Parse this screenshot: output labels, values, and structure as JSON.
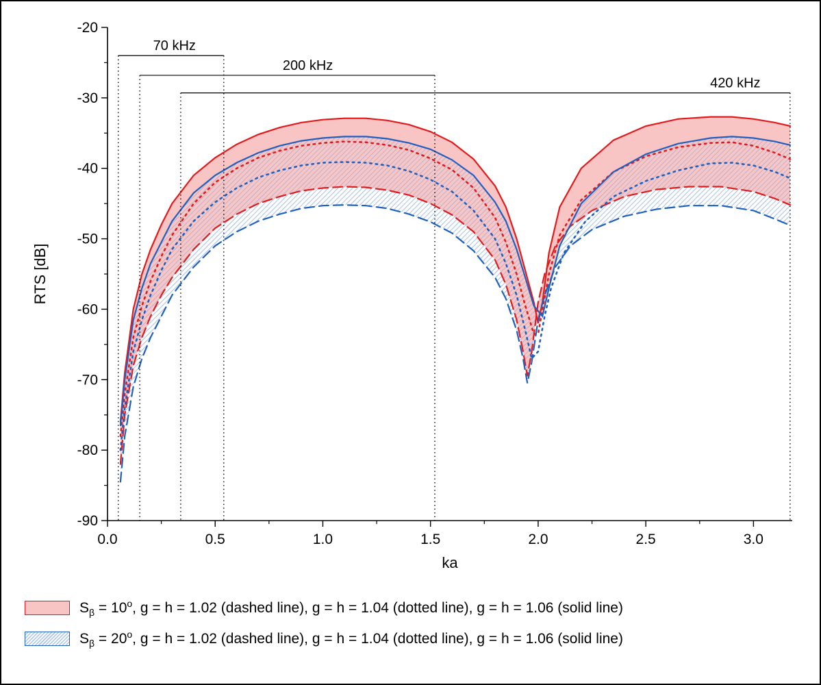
{
  "chart_data": {
    "type": "area",
    "xlabel": "ka",
    "ylabel": "RTS [dB]",
    "xlim": [
      0.0,
      3.18
    ],
    "ylim": [
      -90,
      -20
    ],
    "xticks": [
      "0.0",
      "0.5",
      "1.0",
      "1.5",
      "2.0",
      "2.5",
      "3.0"
    ],
    "yticks": [
      "-20",
      "-30",
      "-40",
      "-50",
      "-60",
      "-70",
      "-80",
      "-90"
    ],
    "grid": false,
    "legend_position": "bottom",
    "frequency_ranges": [
      {
        "label": "70 kHz",
        "ka_min": 0.05,
        "ka_max": 0.54,
        "rts_level": -24
      },
      {
        "label": "200 kHz",
        "ka_min": 0.15,
        "ka_max": 1.52,
        "rts_level": -26.8
      },
      {
        "label": "420 kHz",
        "ka_min": 0.34,
        "ka_max": 3.17,
        "rts_level": -29.3
      }
    ],
    "series": [
      {
        "group": "S10",
        "style": "dashed",
        "color": "#e31a1c",
        "points": [
          [
            0.06,
            -82
          ],
          [
            0.08,
            -75
          ],
          [
            0.12,
            -68
          ],
          [
            0.16,
            -64
          ],
          [
            0.2,
            -61
          ],
          [
            0.25,
            -58
          ],
          [
            0.3,
            -55.5
          ],
          [
            0.4,
            -51.5
          ],
          [
            0.5,
            -48.5
          ],
          [
            0.6,
            -46.5
          ],
          [
            0.7,
            -45
          ],
          [
            0.8,
            -44
          ],
          [
            0.9,
            -43.2
          ],
          [
            1.0,
            -42.8
          ],
          [
            1.1,
            -42.6
          ],
          [
            1.2,
            -42.7
          ],
          [
            1.3,
            -43.1
          ],
          [
            1.4,
            -43.8
          ],
          [
            1.5,
            -45
          ],
          [
            1.6,
            -46.6
          ],
          [
            1.7,
            -49
          ],
          [
            1.8,
            -53
          ],
          [
            1.85,
            -56.5
          ],
          [
            1.9,
            -61.5
          ],
          [
            1.93,
            -66
          ],
          [
            1.95,
            -69.5
          ],
          [
            1.97,
            -66
          ],
          [
            2.0,
            -59
          ],
          [
            2.03,
            -55
          ],
          [
            2.08,
            -51
          ],
          [
            2.15,
            -48.2
          ],
          [
            2.25,
            -46
          ],
          [
            2.4,
            -44
          ],
          [
            2.55,
            -43
          ],
          [
            2.7,
            -42.6
          ],
          [
            2.85,
            -42.6
          ],
          [
            3.0,
            -43.3
          ],
          [
            3.1,
            -44.3
          ],
          [
            3.17,
            -45.2
          ]
        ]
      },
      {
        "group": "S10",
        "style": "dotted",
        "color": "#e31a1c",
        "points": [
          [
            0.06,
            -78
          ],
          [
            0.08,
            -72
          ],
          [
            0.12,
            -64
          ],
          [
            0.16,
            -59.5
          ],
          [
            0.2,
            -56
          ],
          [
            0.25,
            -52.5
          ],
          [
            0.3,
            -49.5
          ],
          [
            0.4,
            -45
          ],
          [
            0.5,
            -42
          ],
          [
            0.6,
            -40
          ],
          [
            0.7,
            -38.5
          ],
          [
            0.8,
            -37.5
          ],
          [
            0.9,
            -36.8
          ],
          [
            1.0,
            -36.4
          ],
          [
            1.1,
            -36.2
          ],
          [
            1.2,
            -36.3
          ],
          [
            1.3,
            -36.7
          ],
          [
            1.4,
            -37.4
          ],
          [
            1.5,
            -38.6
          ],
          [
            1.6,
            -40.2
          ],
          [
            1.7,
            -42.8
          ],
          [
            1.8,
            -47
          ],
          [
            1.85,
            -50.5
          ],
          [
            1.9,
            -55
          ],
          [
            1.94,
            -59.5
          ],
          [
            1.98,
            -63.5
          ],
          [
            2.0,
            -63.5
          ],
          [
            2.02,
            -60
          ],
          [
            2.05,
            -55
          ],
          [
            2.1,
            -49.5
          ],
          [
            2.2,
            -44.5
          ],
          [
            2.35,
            -40.5
          ],
          [
            2.5,
            -38.3
          ],
          [
            2.65,
            -37
          ],
          [
            2.8,
            -36.4
          ],
          [
            2.9,
            -36.3
          ],
          [
            3.0,
            -36.8
          ],
          [
            3.1,
            -37.8
          ],
          [
            3.17,
            -38.7
          ]
        ]
      },
      {
        "group": "S10",
        "style": "solid",
        "color": "#e31a1c",
        "points": [
          [
            0.06,
            -76
          ],
          [
            0.08,
            -69
          ],
          [
            0.12,
            -60
          ],
          [
            0.16,
            -55
          ],
          [
            0.2,
            -51.5
          ],
          [
            0.25,
            -48
          ],
          [
            0.3,
            -45
          ],
          [
            0.4,
            -41
          ],
          [
            0.5,
            -38.5
          ],
          [
            0.6,
            -36.6
          ],
          [
            0.7,
            -35.2
          ],
          [
            0.8,
            -34.2
          ],
          [
            0.9,
            -33.5
          ],
          [
            1.0,
            -33.1
          ],
          [
            1.1,
            -32.9
          ],
          [
            1.2,
            -32.9
          ],
          [
            1.3,
            -33.2
          ],
          [
            1.4,
            -33.8
          ],
          [
            1.5,
            -34.8
          ],
          [
            1.6,
            -36.3
          ],
          [
            1.7,
            -38.7
          ],
          [
            1.8,
            -42.5
          ],
          [
            1.85,
            -45.5
          ],
          [
            1.9,
            -50
          ],
          [
            1.94,
            -54.5
          ],
          [
            1.98,
            -59
          ],
          [
            2.0,
            -62
          ],
          [
            2.02,
            -59
          ],
          [
            2.05,
            -52
          ],
          [
            2.1,
            -45.5
          ],
          [
            2.2,
            -40
          ],
          [
            2.35,
            -36
          ],
          [
            2.5,
            -34
          ],
          [
            2.65,
            -33
          ],
          [
            2.8,
            -32.7
          ],
          [
            2.9,
            -32.7
          ],
          [
            3.0,
            -33
          ],
          [
            3.1,
            -33.5
          ],
          [
            3.17,
            -34
          ]
        ]
      },
      {
        "group": "S20",
        "style": "dashed",
        "color": "#1f5fbf",
        "points": [
          [
            0.06,
            -84.5
          ],
          [
            0.08,
            -78
          ],
          [
            0.12,
            -71
          ],
          [
            0.16,
            -67
          ],
          [
            0.2,
            -64
          ],
          [
            0.25,
            -61
          ],
          [
            0.3,
            -58
          ],
          [
            0.4,
            -54
          ],
          [
            0.5,
            -51
          ],
          [
            0.6,
            -49
          ],
          [
            0.7,
            -47.5
          ],
          [
            0.8,
            -46.5
          ],
          [
            0.9,
            -45.7
          ],
          [
            1.0,
            -45.3
          ],
          [
            1.1,
            -45.2
          ],
          [
            1.2,
            -45.3
          ],
          [
            1.3,
            -45.7
          ],
          [
            1.4,
            -46.5
          ],
          [
            1.5,
            -47.6
          ],
          [
            1.6,
            -49.2
          ],
          [
            1.7,
            -51.7
          ],
          [
            1.8,
            -55.5
          ],
          [
            1.85,
            -58.5
          ],
          [
            1.9,
            -63
          ],
          [
            1.93,
            -67
          ],
          [
            1.95,
            -70.5
          ],
          [
            1.97,
            -67.5
          ],
          [
            2.0,
            -61.5
          ],
          [
            2.03,
            -58
          ],
          [
            2.08,
            -54
          ],
          [
            2.15,
            -51
          ],
          [
            2.25,
            -48.7
          ],
          [
            2.4,
            -46.8
          ],
          [
            2.55,
            -45.8
          ],
          [
            2.7,
            -45.3
          ],
          [
            2.85,
            -45.3
          ],
          [
            3.0,
            -46
          ],
          [
            3.1,
            -47.2
          ],
          [
            3.17,
            -48.1
          ]
        ]
      },
      {
        "group": "S20",
        "style": "dotted",
        "color": "#1f5fbf",
        "points": [
          [
            0.06,
            -80
          ],
          [
            0.08,
            -74
          ],
          [
            0.12,
            -66
          ],
          [
            0.16,
            -61.5
          ],
          [
            0.2,
            -58
          ],
          [
            0.25,
            -54.5
          ],
          [
            0.3,
            -51.5
          ],
          [
            0.4,
            -47.5
          ],
          [
            0.5,
            -44.8
          ],
          [
            0.6,
            -42.8
          ],
          [
            0.7,
            -41.3
          ],
          [
            0.8,
            -40.3
          ],
          [
            0.9,
            -39.6
          ],
          [
            1.0,
            -39.2
          ],
          [
            1.1,
            -39.1
          ],
          [
            1.2,
            -39.2
          ],
          [
            1.3,
            -39.6
          ],
          [
            1.4,
            -40.4
          ],
          [
            1.5,
            -41.6
          ],
          [
            1.6,
            -43.3
          ],
          [
            1.7,
            -46
          ],
          [
            1.8,
            -50
          ],
          [
            1.85,
            -53.5
          ],
          [
            1.9,
            -58
          ],
          [
            1.94,
            -63
          ],
          [
            1.97,
            -67
          ],
          [
            2.0,
            -66
          ],
          [
            2.03,
            -61
          ],
          [
            2.06,
            -57
          ],
          [
            2.12,
            -52
          ],
          [
            2.22,
            -47.5
          ],
          [
            2.35,
            -44
          ],
          [
            2.5,
            -41.8
          ],
          [
            2.65,
            -40.3
          ],
          [
            2.8,
            -39.3
          ],
          [
            2.9,
            -39.2
          ],
          [
            3.0,
            -39.6
          ],
          [
            3.1,
            -40.5
          ],
          [
            3.17,
            -41.4
          ]
        ]
      },
      {
        "group": "S20",
        "style": "solid",
        "color": "#1f5fbf",
        "points": [
          [
            0.06,
            -76.5
          ],
          [
            0.08,
            -70
          ],
          [
            0.12,
            -61.5
          ],
          [
            0.16,
            -57
          ],
          [
            0.2,
            -53.5
          ],
          [
            0.25,
            -50.5
          ],
          [
            0.3,
            -47.5
          ],
          [
            0.4,
            -43.5
          ],
          [
            0.5,
            -41
          ],
          [
            0.6,
            -39.2
          ],
          [
            0.7,
            -37.8
          ],
          [
            0.8,
            -36.8
          ],
          [
            0.9,
            -36.1
          ],
          [
            1.0,
            -35.7
          ],
          [
            1.1,
            -35.5
          ],
          [
            1.2,
            -35.5
          ],
          [
            1.3,
            -35.8
          ],
          [
            1.4,
            -36.4
          ],
          [
            1.5,
            -37.3
          ],
          [
            1.6,
            -38.8
          ],
          [
            1.7,
            -41
          ],
          [
            1.8,
            -44.8
          ],
          [
            1.85,
            -47.5
          ],
          [
            1.9,
            -51.5
          ],
          [
            1.94,
            -55.5
          ],
          [
            1.98,
            -59.5
          ],
          [
            2.02,
            -61
          ],
          [
            2.05,
            -57
          ],
          [
            2.1,
            -51
          ],
          [
            2.2,
            -45
          ],
          [
            2.35,
            -40.5
          ],
          [
            2.5,
            -38
          ],
          [
            2.65,
            -36.5
          ],
          [
            2.8,
            -35.7
          ],
          [
            2.9,
            -35.5
          ],
          [
            3.0,
            -35.7
          ],
          [
            3.1,
            -36.2
          ],
          [
            3.17,
            -36.7
          ]
        ]
      }
    ],
    "legend": [
      {
        "group": "S10",
        "symbol": "S",
        "subscript": "β",
        "equals": " = 10",
        "degree": "o",
        "rest": ", g = h = 1.02 (dashed line), g = h = 1.04 (dotted line), g = h = 1.06 (solid line)",
        "fill": "#f9c4c4",
        "edge": "#e31a1c"
      },
      {
        "group": "S20",
        "symbol": "S",
        "subscript": "β",
        "equals": " = 20",
        "degree": "o",
        "rest": ", g = h = 1.02 (dashed line), g = h = 1.04 (dotted line), g = h = 1.06 (solid line)",
        "fill": "#a9c4ea",
        "edge": "#1f5fbf"
      }
    ]
  }
}
